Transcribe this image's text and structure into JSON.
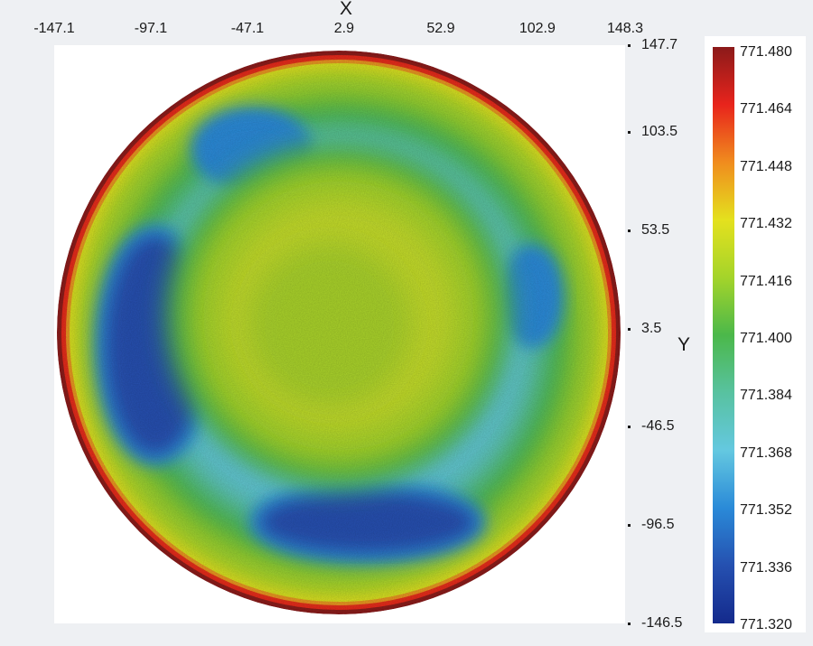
{
  "chart_data": {
    "type": "heatmap",
    "title": "",
    "xlabel": "X",
    "ylabel": "Y",
    "x_ticks": [
      "-147.1",
      "-97.1",
      "-47.1",
      "2.9",
      "52.9",
      "102.9",
      "148.3"
    ],
    "y_ticks": [
      "147.7",
      "103.5",
      "53.5",
      "3.5",
      "-46.5",
      "-96.5",
      "-146.5"
    ],
    "xlim": [
      -147.1,
      148.3
    ],
    "ylim": [
      -146.5,
      147.7
    ],
    "colorbar": {
      "labels": [
        "771.480",
        "771.464",
        "771.448",
        "771.432",
        "771.416",
        "771.400",
        "771.384",
        "771.368",
        "771.352",
        "771.336",
        "771.320"
      ],
      "min": 771.32,
      "max": 771.48,
      "colors": [
        "#8b1a1a",
        "#e8241c",
        "#f08c1e",
        "#e4e11e",
        "#a4d42a",
        "#4bb84a",
        "#58c2a0",
        "#64c8e0",
        "#2a8ad8",
        "#2550b0",
        "#142a8c"
      ]
    },
    "surface": {
      "shape": "circular",
      "center_value": 771.425,
      "regions": [
        {
          "name": "center plateau",
          "x_center": 0,
          "y_center": 10,
          "radius": 75,
          "value": 771.428
        },
        {
          "name": "left low band",
          "x_range": [
            -120,
            -70
          ],
          "y_range": [
            -60,
            50
          ],
          "value": 771.335
        },
        {
          "name": "bottom low band",
          "x_range": [
            -40,
            70
          ],
          "y_range": [
            -110,
            -80
          ],
          "value": 771.33
        },
        {
          "name": "top-left low band",
          "x_range": [
            -70,
            -20
          ],
          "y_range": [
            80,
            110
          ],
          "value": 771.345
        },
        {
          "name": "right low spot",
          "x_range": [
            90,
            110
          ],
          "y_range": [
            0,
            40
          ],
          "value": 771.35
        },
        {
          "name": "rim",
          "radius": 148,
          "value": 771.48
        }
      ]
    }
  }
}
